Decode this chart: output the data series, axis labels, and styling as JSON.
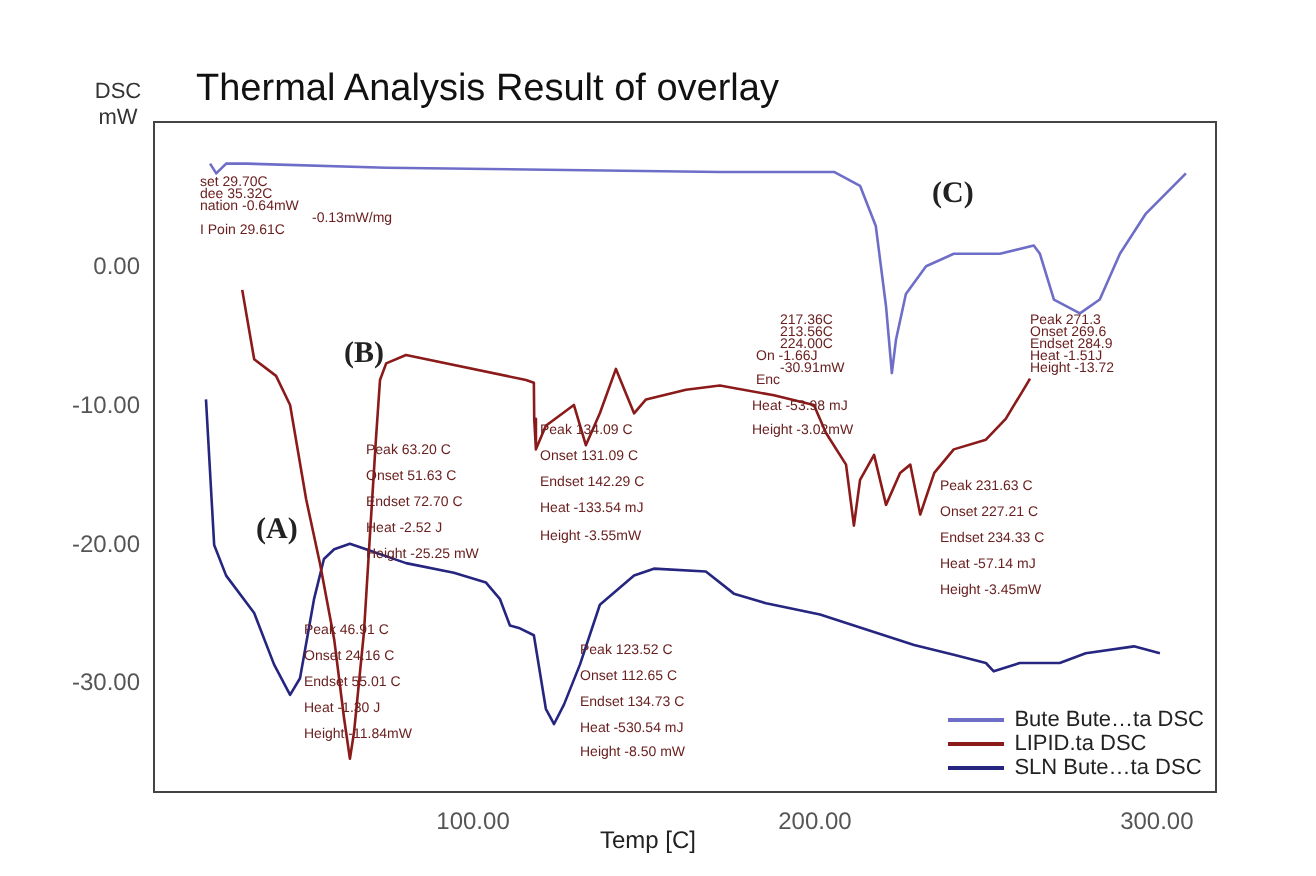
{
  "chart_data": {
    "type": "line",
    "title": "Thermal Analysis Result of overlay",
    "xlabel": "Temp [C]",
    "ylabel": "DSC mW",
    "xlim": [
      6.7,
      317.3
    ],
    "ylim": [
      -37.8,
      10.5
    ],
    "xticks": [
      {
        "value": 100,
        "label": "100.00"
      },
      {
        "value": 200,
        "label": "200.00"
      },
      {
        "value": 300,
        "label": "300.00"
      }
    ],
    "yticks": [
      {
        "value": 0,
        "label": "0.00"
      },
      {
        "value": -10,
        "label": "-10.00"
      },
      {
        "value": -20,
        "label": "-20.00"
      },
      {
        "value": -30,
        "label": "-30.00"
      }
    ],
    "grid": false,
    "legend": "bottom right",
    "marker": "none",
    "series": [
      {
        "name": "Bute Bute…ta DSC",
        "color": "#6e6ec8",
        "x": [
          23.1,
          24.9,
          27.8,
          33.6,
          74.6,
          172.2,
          205.6,
          213.2,
          217.8,
          220.8,
          222.5,
          223.7,
          226.6,
          232.5,
          240.6,
          254.1,
          264.0,
          265.8,
          269.9,
          277.5,
          283.3,
          289.2,
          296.8,
          308.5
        ],
        "values": [
          7.5,
          6.8,
          7.5,
          7.5,
          7.2,
          6.9,
          6.9,
          5.9,
          3.0,
          -2.8,
          -7.6,
          -5.2,
          -1.9,
          0.1,
          1.0,
          1.0,
          1.6,
          1.0,
          -2.3,
          -3.3,
          -2.3,
          1.0,
          3.9,
          6.8
        ]
      },
      {
        "name": "LIPID.ta DSC",
        "color": "#8b1a1a",
        "x": [
          32.5,
          36.0,
          42.4,
          46.5,
          51.2,
          55.3,
          59.4,
          62.3,
          64.0,
          65.2,
          68.1,
          69.9,
          71.6,
          72.8,
          74.6,
          80.4,
          115.5,
          117.8,
          117.9,
          118.4,
          121.3,
          129.5,
          133.0,
          137.1,
          141.8,
          147.1,
          150.6,
          162.3,
          172.2,
          188.0,
          199.7,
          203.2,
          209.1,
          211.4,
          213.2,
          217.3,
          220.8,
          224.9,
          227.9,
          230.8,
          234.9,
          240.6,
          250.0,
          255.8,
          261.7,
          262.9
        ],
        "values": [
          -1.6,
          -6.6,
          -7.8,
          -9.9,
          -16.7,
          -21.4,
          -26.8,
          -32.5,
          -35.4,
          -33.5,
          -26.3,
          -19.1,
          -12.4,
          -8.1,
          -6.9,
          -6.3,
          -8.1,
          -8.3,
          -10.9,
          -13.1,
          -11.4,
          -9.9,
          -12.8,
          -10.5,
          -7.3,
          -10.5,
          -9.5,
          -8.8,
          -8.5,
          -9.2,
          -9.9,
          -11.9,
          -14.2,
          -18.6,
          -15.3,
          -13.5,
          -17.1,
          -14.8,
          -14.2,
          -17.8,
          -14.8,
          -13.1,
          -12.4,
          -10.9,
          -8.5,
          -8.0
        ]
      },
      {
        "name": "SLN Bute…ta DSC",
        "color": "#262680",
        "x": [
          21.9,
          24.3,
          27.8,
          36.0,
          41.8,
          46.5,
          49.4,
          53.5,
          56.4,
          59.4,
          64.0,
          68.7,
          80.4,
          94.4,
          103.8,
          107.9,
          110.8,
          113.7,
          117.8,
          121.3,
          123.7,
          126.6,
          131.3,
          137.1,
          147.1,
          152.9,
          168.1,
          176.3,
          185.7,
          201.5,
          211.4,
          229.0,
          240.6,
          250.0,
          252.3,
          259.9,
          271.6,
          279.2,
          293.3,
          300.9
        ],
        "values": [
          -9.5,
          -20.0,
          -22.2,
          -24.9,
          -28.6,
          -30.8,
          -29.6,
          -23.9,
          -21.0,
          -20.3,
          -19.9,
          -20.3,
          -21.3,
          -22.0,
          -22.7,
          -23.9,
          -25.8,
          -26.0,
          -26.5,
          -31.8,
          -32.9,
          -31.5,
          -28.6,
          -24.3,
          -22.2,
          -21.7,
          -21.9,
          -23.5,
          -24.2,
          -25.0,
          -25.8,
          -27.2,
          -27.9,
          -28.5,
          -29.1,
          -28.5,
          -28.5,
          -27.8,
          -27.3,
          -27.8
        ]
      }
    ],
    "annotations": [
      "(A)",
      "(B)",
      "(C)",
      "Peak 63.20 C",
      "Onset 51.63 C",
      "Endset 72.70 C",
      "Heat -2.52 J",
      "Height -25.25 mW",
      "Peak 134.09 C",
      "Onset 131.09 C",
      "Endset 142.29 C",
      "Heat -133.54 mJ",
      "Height -3.55mW",
      "Peak 46.91 C",
      "Onset 24.16 C",
      "Endset 55.01 C",
      "Heat -1.30 J",
      "Height -11.84mW",
      "Peak 123.52 C",
      "Onset 112.65 C",
      "Endset 134.73 C",
      "Heat -530.54 mJ",
      "Height -8.50 mW",
      "Peak 231.63 C",
      "Onset 227.21 C",
      "Endset 234.33 C",
      "Heat -57.14 mJ",
      "Height -3.45mW",
      "217.36C",
      "213.56C",
      "224.00C",
      "On -1.66J",
      "-30.91mW",
      "Enc",
      "Heat -53.98 mJ",
      "Height -3.02mW",
      "Peak 271.3",
      "Onset 269.6",
      "Endset 284.9",
      "Heat -1.51J",
      "Height -13.72",
      "set 29.70C",
      "dee 35.32C",
      "nation -0.64mW",
      "-0.13mW/mg",
      "I Poin 29.61C"
    ]
  }
}
